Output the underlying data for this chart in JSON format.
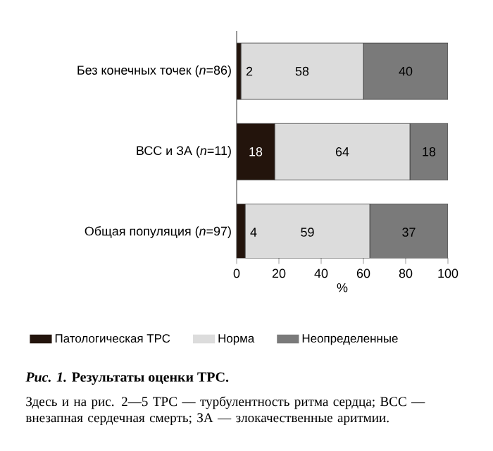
{
  "chart_data": {
    "type": "bar",
    "orientation": "horizontal",
    "stacked": true,
    "categories": [
      "Без конечных точек (*n*=86)",
      "ВСС и ЗА (*n*=11)",
      "Общая популяция (*n*=97)"
    ],
    "series": [
      {
        "name": "Патологическая ТРС",
        "color": "#23140c",
        "values": [
          2,
          18,
          4
        ]
      },
      {
        "name": "Норма",
        "color": "#dcdcdc",
        "values": [
          58,
          64,
          59
        ]
      },
      {
        "name": "Неопределенные",
        "color": "#7a7a7a",
        "values": [
          40,
          18,
          37
        ]
      }
    ],
    "xlim": [
      0,
      100
    ],
    "xticks": [
      0,
      20,
      40,
      60,
      80,
      100
    ],
    "xlabel": "%",
    "data_labels": true,
    "legend": "bottom",
    "annotations": [
      "*Рис. 1.* Результаты оценки ТРС.",
      "Здесь и на рис. 2—5 ТРС — турбулентность ритма сердца; ВСС — внезапная сердечная смерть; ЗА — злокачественные аритмии."
    ]
  }
}
